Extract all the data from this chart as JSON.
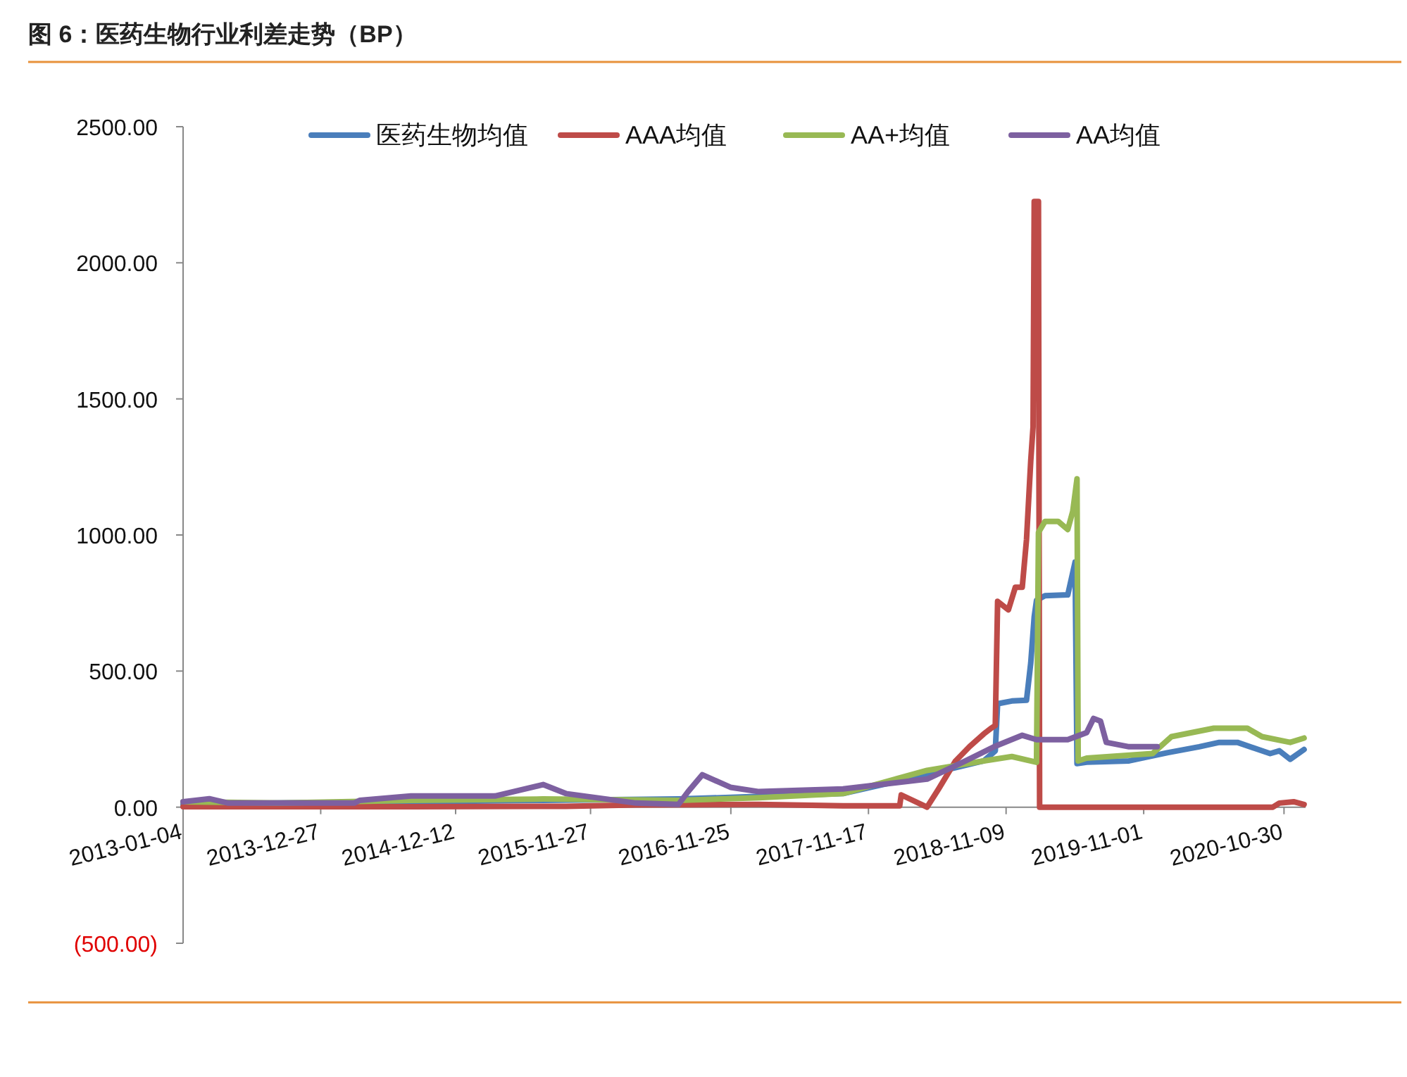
{
  "chart_data": {
    "type": "line",
    "title": "图 6：医药生物行业利差走势（BP）",
    "xlim": [
      "2013-01-04",
      "2020-12-25"
    ],
    "xticks": [
      "2013-01-04",
      "2013-12-27",
      "2014-12-12",
      "2015-11-27",
      "2016-11-25",
      "2017-11-17",
      "2018-11-09",
      "2019-11-01",
      "2020-10-30"
    ],
    "ylim": [
      -500,
      2500
    ],
    "yticks": [
      {
        "value": -500,
        "label": "(500.00)"
      },
      {
        "value": 0,
        "label": "0.00"
      },
      {
        "value": 500,
        "label": "500.00"
      },
      {
        "value": 1000,
        "label": "1000.00"
      },
      {
        "value": 1500,
        "label": "1500.00"
      },
      {
        "value": 2000,
        "label": "2000.00"
      },
      {
        "value": 2500,
        "label": "2500.00"
      }
    ],
    "grid": false,
    "legend": "top",
    "marker": "none",
    "line_style": "solid",
    "series": [
      {
        "name": "医药生物均值",
        "color": "#4a7ebb",
        "x": [
          "2013-01-04",
          "2013-09-13",
          "2014-08-18",
          "2015-07-27",
          "2016-07-12",
          "2016-11-24",
          "2017-09-12",
          "2018-04-18",
          "2018-09-12",
          "2018-10-12",
          "2018-10-18",
          "2018-11-24",
          "2019-01-01",
          "2019-01-12",
          "2019-01-21",
          "2019-01-27",
          "2019-02-18",
          "2019-04-18",
          "2019-05-07",
          "2019-05-12",
          "2019-06-06",
          "2019-09-24",
          "2020-01-01",
          "2020-03-24",
          "2020-05-15",
          "2020-07-01",
          "2020-09-24",
          "2020-10-18",
          "2020-11-15",
          "2020-12-21"
        ],
        "values": [
          10,
          15,
          20,
          25,
          30,
          36,
          50,
          120,
          170,
          207,
          380,
          390,
          393,
          530,
          700,
          760,
          777,
          780,
          900,
          160,
          165,
          170,
          200,
          222,
          238,
          238,
          197,
          207,
          176,
          212
        ]
      },
      {
        "name": "AAA均值",
        "color": "#be4b48",
        "x": [
          "2013-01-04",
          "2014-08-18",
          "2015-09-24",
          "2016-03-24",
          "2017-02-06",
          "2017-09-12",
          "2018-02-06",
          "2018-02-10",
          "2018-04-18",
          "2018-05-18",
          "2018-07-01",
          "2018-08-06",
          "2018-09-12",
          "2018-10-01",
          "2018-10-12",
          "2018-10-18",
          "2018-11-15",
          "2018-12-03",
          "2018-12-21",
          "2019-01-01",
          "2019-01-12",
          "2019-01-18",
          "2019-01-21",
          "2019-02-01",
          "2019-02-04",
          "2019-09-24",
          "2020-10-01",
          "2020-10-18",
          "2020-11-24",
          "2020-12-21"
        ],
        "values": [
          2,
          2,
          3,
          8,
          10,
          5,
          5,
          45,
          0,
          67,
          170,
          222,
          269,
          290,
          300,
          756,
          725,
          808,
          808,
          983,
          1273,
          1397,
          2225,
          2225,
          0,
          0,
          0,
          15,
          20,
          10
        ]
      },
      {
        "name": "AA+均值",
        "color": "#98b954",
        "x": [
          "2013-01-04",
          "2013-09-13",
          "2014-08-18",
          "2015-07-27",
          "2016-07-12",
          "2017-02-06",
          "2017-09-12",
          "2018-04-18",
          "2018-09-12",
          "2018-11-24",
          "2019-01-27",
          "2019-02-01",
          "2019-02-18",
          "2019-03-24",
          "2019-04-18",
          "2019-05-01",
          "2019-05-12",
          "2019-05-15",
          "2019-06-06",
          "2019-11-24",
          "2020-01-12",
          "2020-05-01",
          "2020-07-27",
          "2020-09-03",
          "2020-11-15",
          "2020-12-21"
        ],
        "values": [
          20,
          15,
          25,
          30,
          25,
          35,
          50,
          135,
          170,
          186,
          165,
          1009,
          1050,
          1050,
          1020,
          1087,
          1206,
          170,
          180,
          197,
          259,
          290,
          290,
          259,
          238,
          254
        ]
      },
      {
        "name": "AA均值",
        "color": "#7d60a0",
        "x": [
          "2013-01-04",
          "2013-03-13",
          "2013-05-01",
          "2014-03-24",
          "2014-04-07",
          "2014-08-18",
          "2015-03-24",
          "2015-07-27",
          "2015-09-24",
          "2015-12-21",
          "2016-03-24",
          "2016-07-12",
          "2016-08-06",
          "2016-09-12",
          "2016-11-24",
          "2017-02-06",
          "2017-09-12",
          "2018-04-18",
          "2018-07-27",
          "2018-10-09",
          "2018-12-21",
          "2019-01-27",
          "2019-04-18",
          "2019-06-06",
          "2019-06-24",
          "2019-07-12",
          "2019-07-27",
          "2019-09-24",
          "2019-12-06"
        ],
        "values": [
          20,
          31,
          15,
          15,
          25,
          41,
          41,
          83,
          50,
          33,
          15,
          10,
          57,
          119,
          73,
          57,
          67,
          103,
          170,
          222,
          264,
          248,
          248,
          274,
          326,
          316,
          238,
          222,
          222
        ]
      }
    ]
  }
}
